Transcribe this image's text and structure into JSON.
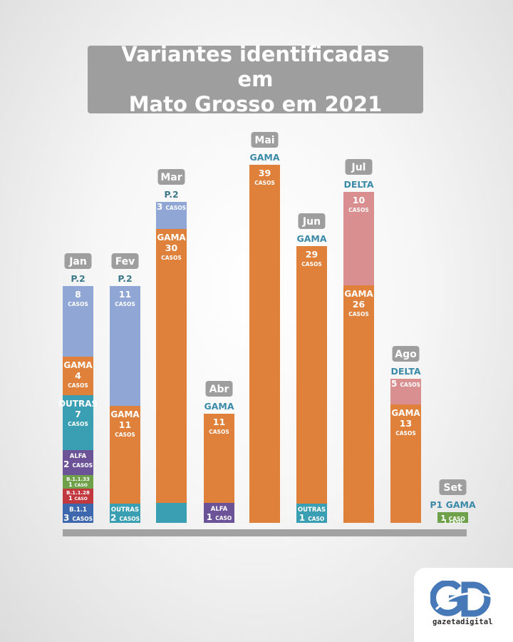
{
  "title": "Variantes identificadas em\nMato Grosso em 2021",
  "logo": {
    "name": "gazetadigital",
    "mark": "GD"
  },
  "colors": {
    "P.2": "#90a7d6",
    "GAMA": "#e0813b",
    "DELTA": "#d98f90",
    "OUTRAS": "#3a9fb3",
    "ALFA": "#6c5398",
    "B.1.1.33": "#6ea14a",
    "B.1.1.28": "#c2383f",
    "B.1.1": "#3d68ad",
    "P1 GAMA": "#6ea14a",
    "label_p2": "#3d7a8a",
    "label_gama": "#3a8aa8",
    "month_badge": "#9e9e9e"
  },
  "chart_data": {
    "type": "bar",
    "stacked": true,
    "title": "Variantes identificadas em Mato Grosso em 2021",
    "categories": [
      "Jan",
      "Fev",
      "Mar",
      "Abr",
      "Mai",
      "Jun",
      "Jul",
      "Ago",
      "Set"
    ],
    "months": [
      {
        "month": "Jan",
        "top_label": "P.2",
        "segments": [
          {
            "variant": "B.1.1",
            "value": 3,
            "name": "B.1.1",
            "count": "3",
            "unit": "CASOS"
          },
          {
            "variant": "B.1.1.28",
            "value": 1,
            "name": "B.1.1.28",
            "count": "1",
            "unit": "CASO"
          },
          {
            "variant": "B.1.1.33",
            "value": 1,
            "name": "B.1.1.33",
            "count": "1",
            "unit": "CASO"
          },
          {
            "variant": "ALFA",
            "value": 2,
            "name": "ALFA",
            "count": "2",
            "unit": "CASOS"
          },
          {
            "variant": "OUTRAS",
            "value": 7,
            "name": "OUTRAS",
            "count": "7",
            "unit": "CASOS"
          },
          {
            "variant": "GAMA",
            "value": 4,
            "name": "GAMA",
            "count": "4",
            "unit": "CASOS"
          },
          {
            "variant": "P.2",
            "value": 8,
            "name": "",
            "count": "8",
            "unit": "CASOS"
          }
        ]
      },
      {
        "month": "Fev",
        "top_label": "P.2",
        "segments": [
          {
            "variant": "OUTRAS",
            "value": 2,
            "name": "OUTRAS",
            "count": "2",
            "unit": "CASOS"
          },
          {
            "variant": "GAMA",
            "value": 11,
            "name": "GAMA",
            "count": "11",
            "unit": "CASOS"
          },
          {
            "variant": "P.2",
            "value": 11,
            "name": "",
            "count": "11",
            "unit": "CASOS"
          }
        ]
      },
      {
        "month": "Mar",
        "top_label": "P.2",
        "segments": [
          {
            "variant": "OUTRAS",
            "value": 2,
            "name": "",
            "count": "",
            "unit": ""
          },
          {
            "variant": "GAMA",
            "value": 30,
            "name": "GAMA",
            "count": "30",
            "unit": "CASOS"
          },
          {
            "variant": "P.2",
            "value": 3,
            "name": "",
            "count": "3",
            "unit": "CASOS"
          }
        ]
      },
      {
        "month": "Abr",
        "top_label": "GAMA",
        "segments": [
          {
            "variant": "ALFA",
            "value": 1,
            "name": "ALFA",
            "count": "1",
            "unit": "CASO"
          },
          {
            "variant": "GAMA",
            "value": 11,
            "name": "",
            "count": "11",
            "unit": "CASOS"
          }
        ]
      },
      {
        "month": "Mai",
        "top_label": "GAMA",
        "segments": [
          {
            "variant": "GAMA",
            "value": 39,
            "name": "",
            "count": "39",
            "unit": "CASOS"
          }
        ]
      },
      {
        "month": "Jun",
        "top_label": "GAMA",
        "segments": [
          {
            "variant": "OUTRAS",
            "value": 1,
            "name": "OUTRAS",
            "count": "1",
            "unit": "CASO"
          },
          {
            "variant": "GAMA",
            "value": 29,
            "name": "",
            "count": "29",
            "unit": "CASOS"
          }
        ]
      },
      {
        "month": "Jul",
        "top_label": "DELTA",
        "segments": [
          {
            "variant": "GAMA",
            "value": 26,
            "name": "GAMA",
            "count": "26",
            "unit": "CASOS"
          },
          {
            "variant": "DELTA",
            "value": 10,
            "name": "",
            "count": "10",
            "unit": "CASOS"
          }
        ]
      },
      {
        "month": "Ago",
        "top_label": "DELTA",
        "segments": [
          {
            "variant": "GAMA",
            "value": 13,
            "name": "GAMA",
            "count": "13",
            "unit": "CASOS"
          },
          {
            "variant": "DELTA",
            "value": 5,
            "name": "",
            "count": "5",
            "unit": "CASOS"
          }
        ]
      },
      {
        "month": "Set",
        "top_label": "P1 GAMA",
        "segments": [
          {
            "variant": "P1 GAMA",
            "value": 1,
            "name": "",
            "count": "1",
            "unit": "CASO"
          }
        ]
      }
    ]
  }
}
